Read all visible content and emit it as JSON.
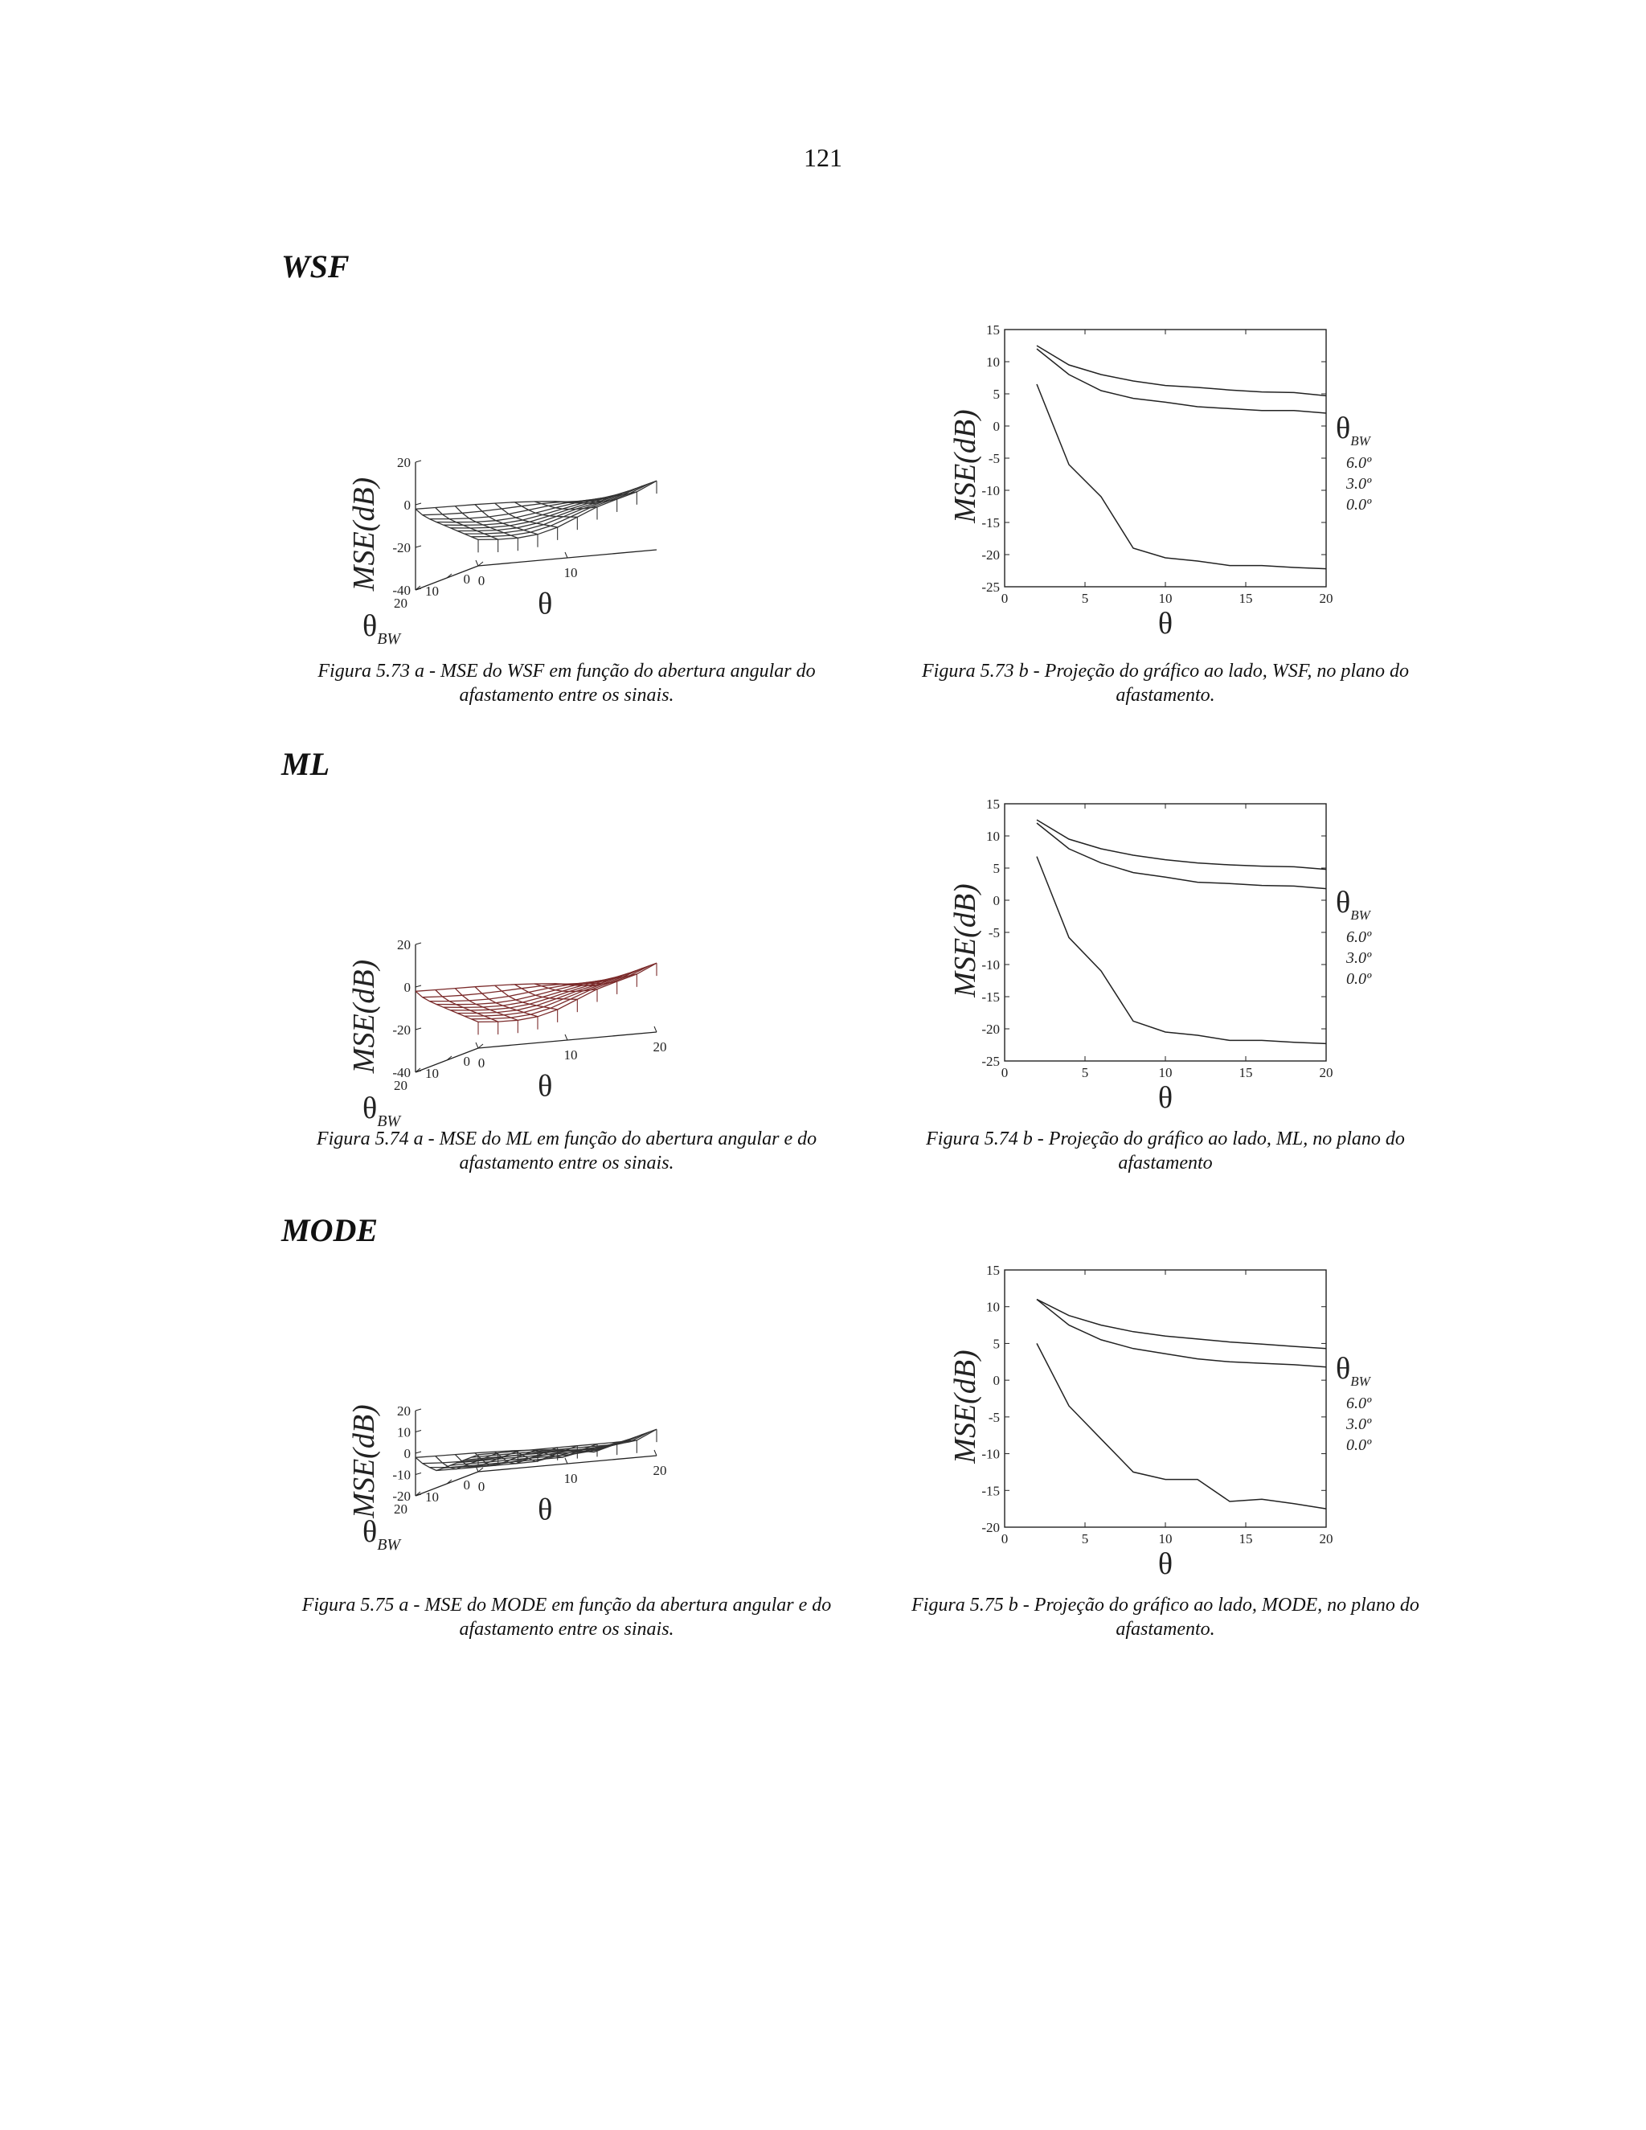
{
  "page_number": "121",
  "sections": [
    {
      "title": "WSF",
      "surface_caption": [
        "Figura 5.73 a - MSE do WSF em função do abertura angular do",
        "afastamento entre os sinais."
      ],
      "projection_caption": [
        "Figura 5.73 b - Projeção do gráfico ao lado,  WSF, no plano do",
        "afastamento."
      ]
    },
    {
      "title": "ML",
      "surface_caption": [
        "Figura 5.74 a - MSE do ML em função do abertura angular e do",
        "afastamento entre os sinais."
      ],
      "projection_caption": [
        "Figura 5.74 b - Projeção do gráfico ao lado,  ML, no plano do",
        "afastamento"
      ]
    },
    {
      "title": "MODE",
      "surface_caption": [
        "Figura 5.75 a - MSE do MODE  em função da abertura  angular e do",
        "afastamento entre os sinais."
      ],
      "projection_caption": [
        "Figura 5.75 b - Projeção do gráfico ao lado,  MODE, no plano do",
        "afastamento."
      ]
    }
  ],
  "chart_data": [
    {
      "id": "fig-5-73a",
      "type": "surface",
      "title": "",
      "zlabel": "MSE(dB)",
      "ylabel": "θ",
      "ylabel_sub": "BW",
      "xlabel": "θ",
      "z_ticks": [
        "20",
        "0",
        "-20",
        "-40"
      ],
      "zlim": [
        -40,
        20
      ],
      "bw_ticks": [
        "20",
        "10",
        "0"
      ],
      "theta_ticks": [
        "0",
        "10"
      ],
      "theta_range": [
        0,
        20
      ],
      "mesh_color": "#333333"
    },
    {
      "id": "fig-5-73b",
      "type": "line",
      "title": "",
      "xlabel": "θ",
      "ylabel": "MSE(dB)",
      "xlim": [
        0,
        20
      ],
      "ylim": [
        -25,
        15
      ],
      "x_ticks": [
        "0",
        "5",
        "10",
        "15",
        "20"
      ],
      "y_ticks": [
        "15",
        "10",
        "5",
        "0",
        "-5",
        "-10",
        "-15",
        "-20",
        "-25"
      ],
      "legend_title": "θ",
      "legend_title_sub": "BW",
      "legend_entries": [
        "6.0º",
        "3.0º",
        "0.0º"
      ],
      "series": [
        {
          "name": "6.0º",
          "x": [
            2,
            4,
            6,
            8,
            10,
            12,
            14,
            16,
            18,
            20
          ],
          "y": [
            12.5,
            9.5,
            8,
            7,
            6.3,
            6,
            5.6,
            5.3,
            5.2,
            4.7
          ]
        },
        {
          "name": "3.0º",
          "x": [
            2,
            4,
            6,
            8,
            10,
            12,
            14,
            16,
            18,
            20
          ],
          "y": [
            12,
            8,
            5.5,
            4.3,
            3.7,
            3,
            2.7,
            2.4,
            2.4,
            2
          ]
        },
        {
          "name": "0.0º",
          "x": [
            2,
            4,
            6,
            8,
            10,
            12,
            14,
            16,
            18,
            20
          ],
          "y": [
            6.5,
            -6,
            -11,
            -19,
            -20.5,
            -21,
            -21.7,
            -21.7,
            -22,
            -22.2
          ]
        }
      ]
    },
    {
      "id": "fig-5-74a",
      "type": "surface",
      "title": "",
      "zlabel": "MSE(dB)",
      "ylabel": "θ",
      "ylabel_sub": "BW",
      "xlabel": "θ",
      "z_ticks": [
        "20",
        "0",
        "-20",
        "-40"
      ],
      "zlim": [
        -40,
        20
      ],
      "bw_ticks": [
        "20",
        "10",
        "0"
      ],
      "theta_ticks": [
        "0",
        "10",
        "20"
      ],
      "theta_range": [
        0,
        20
      ],
      "mesh_color": "#7a2a2a"
    },
    {
      "id": "fig-5-74b",
      "type": "line",
      "title": "",
      "xlabel": "θ",
      "ylabel": "MSE(dB)",
      "xlim": [
        0,
        20
      ],
      "ylim": [
        -25,
        15
      ],
      "x_ticks": [
        "0",
        "5",
        "10",
        "15",
        "20"
      ],
      "y_ticks": [
        "15",
        "10",
        "5",
        "0",
        "-5",
        "-10",
        "-15",
        "-20",
        "-25"
      ],
      "legend_title": "θ",
      "legend_title_sub": "BW",
      "legend_entries": [
        "6.0º",
        "3.0º",
        "0.0º"
      ],
      "series": [
        {
          "name": "6.0º",
          "x": [
            2,
            4,
            6,
            8,
            10,
            12,
            14,
            16,
            18,
            20
          ],
          "y": [
            12.5,
            9.5,
            8,
            7,
            6.3,
            5.8,
            5.5,
            5.3,
            5.2,
            4.8
          ]
        },
        {
          "name": "3.0º",
          "x": [
            2,
            4,
            6,
            8,
            10,
            12,
            14,
            16,
            18,
            20
          ],
          "y": [
            12,
            8,
            5.8,
            4.3,
            3.6,
            2.8,
            2.6,
            2.3,
            2.2,
            1.8
          ]
        },
        {
          "name": "0.0º",
          "x": [
            2,
            4,
            6,
            8,
            10,
            12,
            14,
            16,
            18,
            20
          ],
          "y": [
            6.8,
            -5.8,
            -11,
            -18.8,
            -20.5,
            -21,
            -21.8,
            -21.8,
            -22.1,
            -22.3
          ]
        }
      ]
    },
    {
      "id": "fig-5-75a",
      "type": "surface",
      "title": "",
      "zlabel": "MSE(dB)",
      "ylabel": "θ",
      "ylabel_sub": "BW",
      "xlabel": "θ",
      "z_ticks": [
        "20",
        "10",
        "0",
        "-10",
        "-20"
      ],
      "zlim": [
        -20,
        20
      ],
      "bw_ticks": [
        "20",
        "10",
        "0"
      ],
      "theta_ticks": [
        "0",
        "10",
        "20"
      ],
      "theta_range": [
        0,
        20
      ],
      "mesh_color": "#333333"
    },
    {
      "id": "fig-5-75b",
      "type": "line",
      "title": "",
      "xlabel": "θ",
      "ylabel": "MSE(dB)",
      "xlim": [
        0,
        20
      ],
      "ylim": [
        -20,
        15
      ],
      "x_ticks": [
        "0",
        "5",
        "10",
        "15",
        "20"
      ],
      "y_ticks": [
        "15",
        "10",
        "5",
        "0",
        "-5",
        "-10",
        "-15",
        "-20"
      ],
      "legend_title": "θ",
      "legend_title_sub": "BW",
      "legend_entries": [
        "6.0º",
        "3.0º",
        "0.0º"
      ],
      "series": [
        {
          "name": "6.0º",
          "x": [
            2,
            4,
            6,
            8,
            10,
            12,
            14,
            16,
            18,
            20
          ],
          "y": [
            11,
            8.8,
            7.5,
            6.6,
            6,
            5.6,
            5.2,
            4.9,
            4.6,
            4.3
          ]
        },
        {
          "name": "3.0º",
          "x": [
            2,
            4,
            6,
            8,
            10,
            12,
            14,
            16,
            18,
            20
          ],
          "y": [
            11,
            7.5,
            5.5,
            4.3,
            3.6,
            2.9,
            2.5,
            2.3,
            2.1,
            1.8
          ]
        },
        {
          "name": "0.0º",
          "x": [
            2,
            4,
            6,
            8,
            10,
            12,
            14,
            16,
            18,
            20
          ],
          "y": [
            5,
            -3.5,
            -8,
            -12.5,
            -13.5,
            -13.5,
            -16.5,
            -16.2,
            -16.8,
            -17.5
          ]
        }
      ]
    }
  ]
}
